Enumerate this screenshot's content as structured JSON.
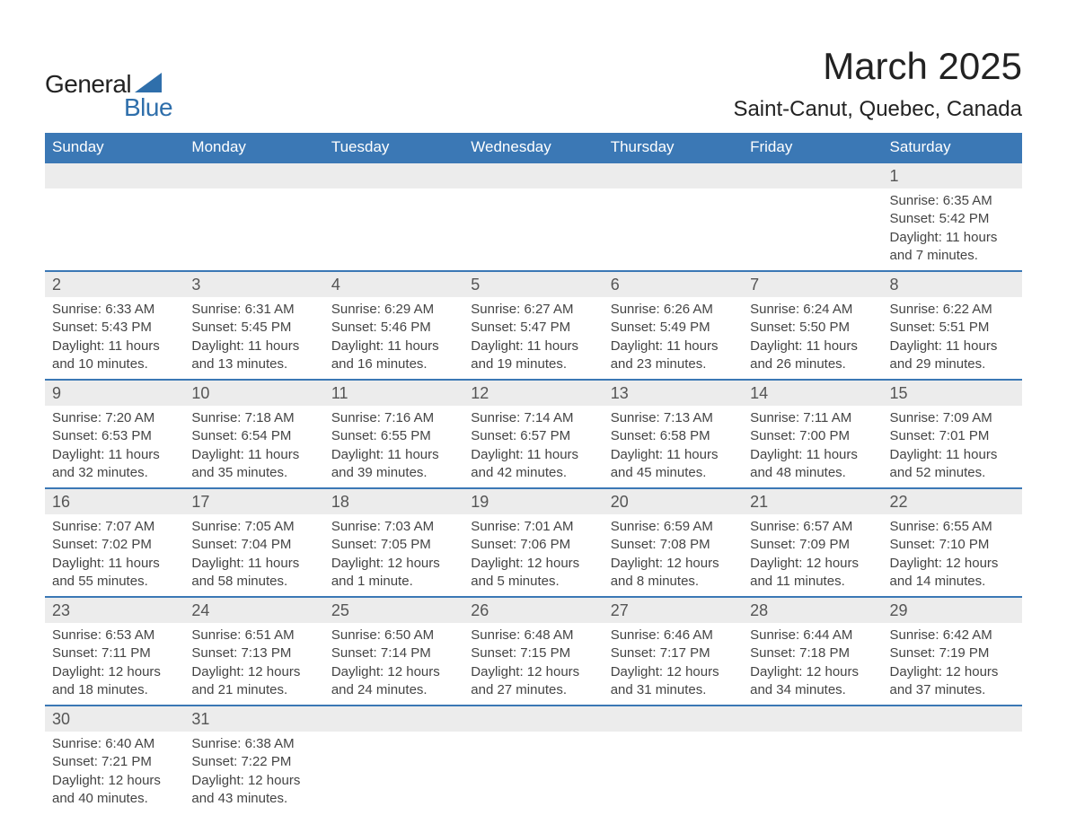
{
  "brand": {
    "word1": "General",
    "word2": "Blue",
    "accent_color": "#2f6fab"
  },
  "title": "March 2025",
  "location": "Saint-Canut, Quebec, Canada",
  "colors": {
    "header_bg": "#3b78b5",
    "header_text": "#ffffff",
    "daynum_bg": "#ececec",
    "text": "#444444",
    "row_divider": "#3b78b5"
  },
  "day_labels": [
    "Sunday",
    "Monday",
    "Tuesday",
    "Wednesday",
    "Thursday",
    "Friday",
    "Saturday"
  ],
  "layout": {
    "first_day_col": 6,
    "days_in_month": 31
  },
  "weeks": [
    [
      null,
      null,
      null,
      null,
      null,
      null,
      {
        "n": "1",
        "sunrise": "Sunrise: 6:35 AM",
        "sunset": "Sunset: 5:42 PM",
        "dl1": "Daylight: 11 hours",
        "dl2": "and 7 minutes."
      }
    ],
    [
      {
        "n": "2",
        "sunrise": "Sunrise: 6:33 AM",
        "sunset": "Sunset: 5:43 PM",
        "dl1": "Daylight: 11 hours",
        "dl2": "and 10 minutes."
      },
      {
        "n": "3",
        "sunrise": "Sunrise: 6:31 AM",
        "sunset": "Sunset: 5:45 PM",
        "dl1": "Daylight: 11 hours",
        "dl2": "and 13 minutes."
      },
      {
        "n": "4",
        "sunrise": "Sunrise: 6:29 AM",
        "sunset": "Sunset: 5:46 PM",
        "dl1": "Daylight: 11 hours",
        "dl2": "and 16 minutes."
      },
      {
        "n": "5",
        "sunrise": "Sunrise: 6:27 AM",
        "sunset": "Sunset: 5:47 PM",
        "dl1": "Daylight: 11 hours",
        "dl2": "and 19 minutes."
      },
      {
        "n": "6",
        "sunrise": "Sunrise: 6:26 AM",
        "sunset": "Sunset: 5:49 PM",
        "dl1": "Daylight: 11 hours",
        "dl2": "and 23 minutes."
      },
      {
        "n": "7",
        "sunrise": "Sunrise: 6:24 AM",
        "sunset": "Sunset: 5:50 PM",
        "dl1": "Daylight: 11 hours",
        "dl2": "and 26 minutes."
      },
      {
        "n": "8",
        "sunrise": "Sunrise: 6:22 AM",
        "sunset": "Sunset: 5:51 PM",
        "dl1": "Daylight: 11 hours",
        "dl2": "and 29 minutes."
      }
    ],
    [
      {
        "n": "9",
        "sunrise": "Sunrise: 7:20 AM",
        "sunset": "Sunset: 6:53 PM",
        "dl1": "Daylight: 11 hours",
        "dl2": "and 32 minutes."
      },
      {
        "n": "10",
        "sunrise": "Sunrise: 7:18 AM",
        "sunset": "Sunset: 6:54 PM",
        "dl1": "Daylight: 11 hours",
        "dl2": "and 35 minutes."
      },
      {
        "n": "11",
        "sunrise": "Sunrise: 7:16 AM",
        "sunset": "Sunset: 6:55 PM",
        "dl1": "Daylight: 11 hours",
        "dl2": "and 39 minutes."
      },
      {
        "n": "12",
        "sunrise": "Sunrise: 7:14 AM",
        "sunset": "Sunset: 6:57 PM",
        "dl1": "Daylight: 11 hours",
        "dl2": "and 42 minutes."
      },
      {
        "n": "13",
        "sunrise": "Sunrise: 7:13 AM",
        "sunset": "Sunset: 6:58 PM",
        "dl1": "Daylight: 11 hours",
        "dl2": "and 45 minutes."
      },
      {
        "n": "14",
        "sunrise": "Sunrise: 7:11 AM",
        "sunset": "Sunset: 7:00 PM",
        "dl1": "Daylight: 11 hours",
        "dl2": "and 48 minutes."
      },
      {
        "n": "15",
        "sunrise": "Sunrise: 7:09 AM",
        "sunset": "Sunset: 7:01 PM",
        "dl1": "Daylight: 11 hours",
        "dl2": "and 52 minutes."
      }
    ],
    [
      {
        "n": "16",
        "sunrise": "Sunrise: 7:07 AM",
        "sunset": "Sunset: 7:02 PM",
        "dl1": "Daylight: 11 hours",
        "dl2": "and 55 minutes."
      },
      {
        "n": "17",
        "sunrise": "Sunrise: 7:05 AM",
        "sunset": "Sunset: 7:04 PM",
        "dl1": "Daylight: 11 hours",
        "dl2": "and 58 minutes."
      },
      {
        "n": "18",
        "sunrise": "Sunrise: 7:03 AM",
        "sunset": "Sunset: 7:05 PM",
        "dl1": "Daylight: 12 hours",
        "dl2": "and 1 minute."
      },
      {
        "n": "19",
        "sunrise": "Sunrise: 7:01 AM",
        "sunset": "Sunset: 7:06 PM",
        "dl1": "Daylight: 12 hours",
        "dl2": "and 5 minutes."
      },
      {
        "n": "20",
        "sunrise": "Sunrise: 6:59 AM",
        "sunset": "Sunset: 7:08 PM",
        "dl1": "Daylight: 12 hours",
        "dl2": "and 8 minutes."
      },
      {
        "n": "21",
        "sunrise": "Sunrise: 6:57 AM",
        "sunset": "Sunset: 7:09 PM",
        "dl1": "Daylight: 12 hours",
        "dl2": "and 11 minutes."
      },
      {
        "n": "22",
        "sunrise": "Sunrise: 6:55 AM",
        "sunset": "Sunset: 7:10 PM",
        "dl1": "Daylight: 12 hours",
        "dl2": "and 14 minutes."
      }
    ],
    [
      {
        "n": "23",
        "sunrise": "Sunrise: 6:53 AM",
        "sunset": "Sunset: 7:11 PM",
        "dl1": "Daylight: 12 hours",
        "dl2": "and 18 minutes."
      },
      {
        "n": "24",
        "sunrise": "Sunrise: 6:51 AM",
        "sunset": "Sunset: 7:13 PM",
        "dl1": "Daylight: 12 hours",
        "dl2": "and 21 minutes."
      },
      {
        "n": "25",
        "sunrise": "Sunrise: 6:50 AM",
        "sunset": "Sunset: 7:14 PM",
        "dl1": "Daylight: 12 hours",
        "dl2": "and 24 minutes."
      },
      {
        "n": "26",
        "sunrise": "Sunrise: 6:48 AM",
        "sunset": "Sunset: 7:15 PM",
        "dl1": "Daylight: 12 hours",
        "dl2": "and 27 minutes."
      },
      {
        "n": "27",
        "sunrise": "Sunrise: 6:46 AM",
        "sunset": "Sunset: 7:17 PM",
        "dl1": "Daylight: 12 hours",
        "dl2": "and 31 minutes."
      },
      {
        "n": "28",
        "sunrise": "Sunrise: 6:44 AM",
        "sunset": "Sunset: 7:18 PM",
        "dl1": "Daylight: 12 hours",
        "dl2": "and 34 minutes."
      },
      {
        "n": "29",
        "sunrise": "Sunrise: 6:42 AM",
        "sunset": "Sunset: 7:19 PM",
        "dl1": "Daylight: 12 hours",
        "dl2": "and 37 minutes."
      }
    ],
    [
      {
        "n": "30",
        "sunrise": "Sunrise: 6:40 AM",
        "sunset": "Sunset: 7:21 PM",
        "dl1": "Daylight: 12 hours",
        "dl2": "and 40 minutes."
      },
      {
        "n": "31",
        "sunrise": "Sunrise: 6:38 AM",
        "sunset": "Sunset: 7:22 PM",
        "dl1": "Daylight: 12 hours",
        "dl2": "and 43 minutes."
      },
      null,
      null,
      null,
      null,
      null
    ]
  ]
}
